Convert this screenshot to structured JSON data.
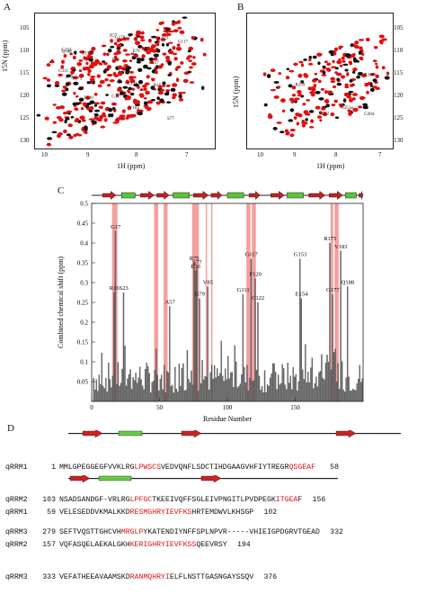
{
  "panels": {
    "a": {
      "letter": "A"
    },
    "b": {
      "letter": "B"
    },
    "c": {
      "letter": "C"
    },
    "d": {
      "letter": "D"
    }
  },
  "nmr_a": {
    "xlabel": "1H (ppm)",
    "ylabel": "15N (ppm)",
    "xticks": [
      "10",
      "9",
      "8",
      "7"
    ],
    "yticks": [
      "105",
      "110",
      "115",
      "120",
      "125",
      "130"
    ],
    "labels": [
      "G111",
      "G178",
      "G17",
      "G117",
      "G153",
      "S77",
      "R175",
      "E76",
      "V85",
      "S23",
      "G79",
      "R16",
      "A57",
      "Q188",
      "E154",
      "F120",
      "V183",
      "R79",
      "C122",
      "G177"
    ]
  },
  "nmr_b": {
    "xlabel": "1H (ppm)",
    "ylabel": "15N (ppm)",
    "xticks": [
      "10",
      "9",
      "8",
      "7"
    ],
    "yticks": [
      "105",
      "110",
      "115",
      "120",
      "125",
      "130"
    ],
    "labels": [
      "N351sc",
      "R299",
      "R348",
      "M352",
      "G304"
    ]
  },
  "chart_data": {
    "type": "bar",
    "ylabel": "Combined chemical shift (ppm)",
    "xlabel": "Residue Number",
    "xlim": [
      0,
      200
    ],
    "ylim": [
      0,
      0.5
    ],
    "xticks": [
      0,
      50,
      100,
      150
    ],
    "yticks": [
      0,
      0.05,
      0.1,
      0.15,
      0.2,
      0.25,
      0.3,
      0.35,
      0.4,
      0.45,
      0.5
    ],
    "labeled_peaks": [
      {
        "label": "R16",
        "x": 16,
        "y": 0.275
      },
      {
        "label": "G17",
        "x": 17,
        "y": 0.43
      },
      {
        "label": "S23",
        "x": 23,
        "y": 0.275
      },
      {
        "label": "A57",
        "x": 57,
        "y": 0.24
      },
      {
        "label": "E76",
        "x": 76,
        "y": 0.33
      },
      {
        "label": "S77",
        "x": 77,
        "y": 0.34
      },
      {
        "label": "R75",
        "x": 75,
        "y": 0.35
      },
      {
        "label": "G79",
        "x": 79,
        "y": 0.26
      },
      {
        "label": "V85",
        "x": 85,
        "y": 0.29
      },
      {
        "label": "G111",
        "x": 111,
        "y": 0.27
      },
      {
        "label": "G117",
        "x": 117,
        "y": 0.36
      },
      {
        "label": "F120",
        "x": 120,
        "y": 0.31
      },
      {
        "label": "C122",
        "x": 122,
        "y": 0.25
      },
      {
        "label": "G153",
        "x": 153,
        "y": 0.36
      },
      {
        "label": "E154",
        "x": 154,
        "y": 0.26
      },
      {
        "label": "R175",
        "x": 175,
        "y": 0.4
      },
      {
        "label": "G177",
        "x": 177,
        "y": 0.27
      },
      {
        "label": "V183",
        "x": 183,
        "y": 0.38
      },
      {
        "label": "Q188",
        "x": 188,
        "y": 0.29
      }
    ],
    "highlighted_ranges": [
      [
        15,
        19
      ],
      [
        46,
        49
      ],
      [
        53,
        56
      ],
      [
        74,
        79
      ],
      [
        84,
        85
      ],
      [
        88,
        89
      ],
      [
        114,
        117
      ],
      [
        118,
        121
      ],
      [
        176,
        178
      ],
      [
        179,
        182
      ]
    ],
    "secondary_structure": [
      {
        "type": "strand",
        "start": 8,
        "end": 18
      },
      {
        "type": "helix",
        "start": 22,
        "end": 32
      },
      {
        "type": "strand",
        "start": 36,
        "end": 46
      },
      {
        "type": "strand",
        "start": 48,
        "end": 57
      },
      {
        "type": "helix",
        "start": 60,
        "end": 72
      },
      {
        "type": "strand",
        "start": 75,
        "end": 86
      },
      {
        "type": "strand",
        "start": 88,
        "end": 96
      },
      {
        "type": "helix",
        "start": 100,
        "end": 112
      },
      {
        "type": "strand",
        "start": 116,
        "end": 124
      },
      {
        "type": "strand",
        "start": 132,
        "end": 142
      },
      {
        "type": "helix",
        "start": 144,
        "end": 156
      },
      {
        "type": "strand",
        "start": 160,
        "end": 172
      },
      {
        "type": "strand",
        "start": 175,
        "end": 185
      },
      {
        "type": "helix",
        "start": 187,
        "end": 195
      },
      {
        "type": "strand",
        "start": 197,
        "end": 204
      }
    ]
  },
  "seqalign": {
    "block1": [
      {
        "name": "qRRM1",
        "start": "1",
        "seq": "MMLGPEGGEGFVVKLRGLPWSCSVEDVQNFLSDCTIHDGAAGVHFIYTREGRQSGEAF",
        "end": "58"
      },
      {
        "name": "qRRM2",
        "start": "103",
        "seq": "NSADSANDGF-VRLRGLPFGCTKEEIVQFFSGLEIVPNGITLPVDPEGKITGEAF",
        "end": "156"
      },
      {
        "name": "qRRM3",
        "start": "279",
        "seq": "SEFTVQSTTGHCVHMRGLPYKATENDIYNFFSPLNPVR-----VHIEIGPDGRVTGEAD",
        "end": "332"
      }
    ],
    "block2": [
      {
        "name": "qRRM1",
        "start": "59",
        "seq": "VELESEDDVKMALKKDRESMGHRYIEVFKSHRTEMDWVLKHSGP",
        "end": "102"
      },
      {
        "name": "qRRM2",
        "start": "157",
        "seq": "VQFASQELAEKALGKHKERIGHRYIEVFKSSQEEVRSY",
        "end": "194"
      },
      {
        "name": "qRRM3",
        "start": "333",
        "seq": "VEFATHEEAVAAMSKDRANMQHRYIELFLNSTTGASNGAYSSQV",
        "end": "376"
      }
    ]
  }
}
